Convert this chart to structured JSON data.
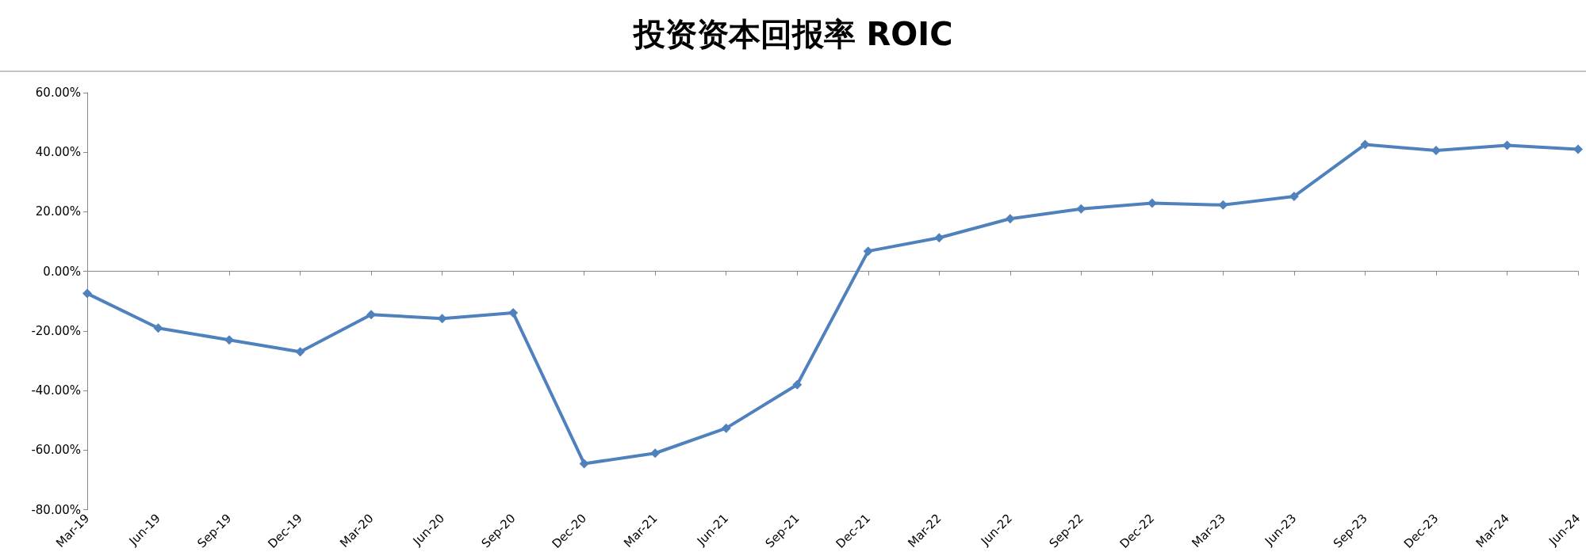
{
  "chart_data": {
    "type": "line",
    "title": "投资资本回报率 ROIC",
    "categories": [
      "Mar-19",
      "Jun-19",
      "Sep-19",
      "Dec-19",
      "Mar-20",
      "Jun-20",
      "Sep-20",
      "Dec-20",
      "Mar-21",
      "Jun-21",
      "Sep-21",
      "Dec-21",
      "Mar-22",
      "Jun-22",
      "Sep-22",
      "Dec-22",
      "Mar-23",
      "Jun-23",
      "Sep-23",
      "Dec-23",
      "Mar-24",
      "Jun-24"
    ],
    "series": [
      {
        "color": "#4f81bd",
        "values": [
          -7.4,
          -19,
          -23,
          -27,
          -14.5,
          -15.8,
          -13.9,
          -64.5,
          -61,
          -52.6,
          -38,
          6.8,
          11.3,
          17.7,
          21,
          22.9,
          22.3,
          25.2,
          42.6,
          40.6,
          42.3,
          41
        ]
      }
    ],
    "ylim": [
      -80,
      60
    ],
    "yticks": [
      {
        "value": -80,
        "label": "-80.00%"
      },
      {
        "value": -60,
        "label": "-60.00%"
      },
      {
        "value": -40,
        "label": "-40.00%"
      },
      {
        "value": -20,
        "label": "-20.00%"
      },
      {
        "value": 0,
        "label": "0.00%"
      },
      {
        "value": 20,
        "label": "20.00%"
      },
      {
        "value": 40,
        "label": "40.00%"
      },
      {
        "value": 60,
        "label": "60.00%"
      }
    ],
    "marker": "diamond",
    "line_style": "solid"
  }
}
